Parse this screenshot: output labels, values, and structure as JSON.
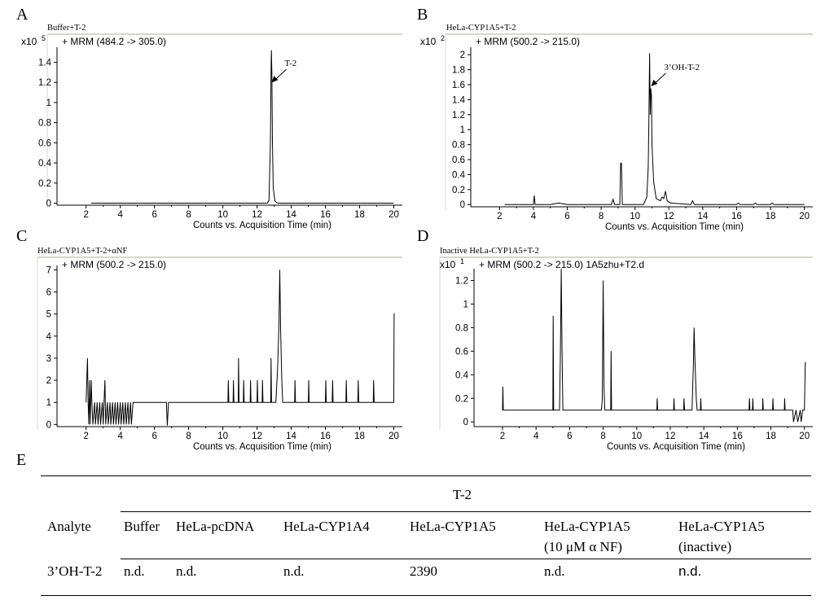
{
  "chart_data": [
    {
      "panel": "A",
      "type": "line",
      "title": "Buffer+T-2",
      "scale_label": "x10",
      "scale_exp": "5",
      "mrm_label": "+ MRM (484.2 -> 305.0)",
      "xlabel": "Counts vs. Acquisition Time (min)",
      "xlim": [
        0.3,
        20.5
      ],
      "ylim": [
        -0.02,
        1.55
      ],
      "xticks": [
        "2",
        "4",
        "6",
        "8",
        "10",
        "12",
        "14",
        "16",
        "18",
        "20"
      ],
      "yticks": [
        "0",
        "0.2",
        "0.4",
        "0.6",
        "0.8",
        "1",
        "1.2",
        "1.4"
      ],
      "annotation": {
        "text": "T-2",
        "x": 12.85,
        "y": 1.2
      },
      "series": [
        {
          "name": "MRM 484.2->305.0",
          "points": [
            [
              2.3,
              0
            ],
            [
              12.6,
              0
            ],
            [
              12.7,
              0.03
            ],
            [
              12.78,
              0.6
            ],
            [
              12.82,
              1.3
            ],
            [
              12.84,
              1.52
            ],
            [
              12.87,
              1.3
            ],
            [
              12.9,
              0.6
            ],
            [
              12.95,
              0.15
            ],
            [
              13.05,
              0.02
            ],
            [
              13.2,
              0
            ],
            [
              20,
              0
            ]
          ]
        }
      ]
    },
    {
      "panel": "B",
      "type": "line",
      "title": "HeLa-CYP1A5+T-2",
      "scale_label": "x10",
      "scale_exp": "2",
      "mrm_label": "+ MRM (500.2 -> 215.0)",
      "xlabel": "Counts vs. Acquisition Time (min)",
      "xlim": [
        0.3,
        20.5
      ],
      "ylim": [
        -0.03,
        2.1
      ],
      "xticks": [
        "2",
        "4",
        "6",
        "8",
        "10",
        "12",
        "14",
        "16",
        "18",
        "20"
      ],
      "yticks": [
        "0",
        "0.2",
        "0.4",
        "0.6",
        "0.8",
        "1",
        "1.2",
        "1.4",
        "1.6",
        "1.8",
        "2"
      ],
      "annotation": {
        "text": "3’OH-T-2",
        "x": 10.95,
        "y": 1.58
      },
      "series": [
        {
          "name": "MRM 500.2->215.0",
          "points": [
            [
              2.3,
              0
            ],
            [
              4.0,
              0
            ],
            [
              4.05,
              0.12
            ],
            [
              4.1,
              0
            ],
            [
              5.0,
              0
            ],
            [
              5.5,
              0.02
            ],
            [
              6.0,
              0
            ],
            [
              8.6,
              0
            ],
            [
              8.7,
              0.07
            ],
            [
              8.8,
              0
            ],
            [
              9.1,
              0
            ],
            [
              9.15,
              0.55
            ],
            [
              9.2,
              0.55
            ],
            [
              9.25,
              0
            ],
            [
              10.5,
              0
            ],
            [
              10.7,
              0.1
            ],
            [
              10.78,
              0.5
            ],
            [
              10.82,
              1.1
            ],
            [
              10.86,
              2.02
            ],
            [
              10.9,
              1.2
            ],
            [
              10.93,
              1.55
            ],
            [
              10.97,
              1.45
            ],
            [
              11.0,
              0.8
            ],
            [
              11.1,
              0.3
            ],
            [
              11.25,
              0.08
            ],
            [
              11.5,
              0.05
            ],
            [
              11.6,
              0.1
            ],
            [
              11.7,
              0.08
            ],
            [
              11.8,
              0.18
            ],
            [
              11.9,
              0.05
            ],
            [
              12.1,
              0.02
            ],
            [
              13.3,
              0
            ],
            [
              13.4,
              0.05
            ],
            [
              13.5,
              0
            ],
            [
              16.0,
              0
            ],
            [
              16.1,
              0.02
            ],
            [
              16.2,
              0
            ],
            [
              17.0,
              0
            ],
            [
              17.1,
              0.02
            ],
            [
              17.2,
              0
            ],
            [
              18.0,
              0
            ],
            [
              18.1,
              0.02
            ],
            [
              18.2,
              0
            ],
            [
              20,
              0
            ]
          ]
        }
      ]
    },
    {
      "panel": "C",
      "type": "line",
      "title": "HeLa-CYP1A5+T-2+αNF",
      "mrm_label": "+ MRM (500.2 -> 215.0)",
      "xlabel": "Counts vs. Acquisition Time (min)",
      "xlim": [
        0.3,
        20.5
      ],
      "ylim": [
        -0.1,
        7.2
      ],
      "xticks": [
        "2",
        "4",
        "6",
        "8",
        "10",
        "12",
        "14",
        "16",
        "18",
        "20"
      ],
      "yticks": [
        "0",
        "1",
        "2",
        "3",
        "4",
        "5",
        "6",
        "7"
      ],
      "series": [
        {
          "name": "MRM 500.2->215.0",
          "points": [
            [
              2.0,
              1
            ],
            [
              2.08,
              3
            ],
            [
              2.12,
              1
            ],
            [
              2.16,
              0
            ],
            [
              2.2,
              2
            ],
            [
              2.24,
              0
            ],
            [
              2.3,
              2
            ],
            [
              2.34,
              1
            ],
            [
              2.4,
              0
            ],
            [
              2.5,
              1
            ],
            [
              2.55,
              0
            ],
            [
              2.65,
              1
            ],
            [
              2.7,
              0
            ],
            [
              2.8,
              1
            ],
            [
              2.85,
              0
            ],
            [
              2.95,
              1
            ],
            [
              3.0,
              0
            ],
            [
              3.1,
              2
            ],
            [
              3.15,
              0
            ],
            [
              3.25,
              1
            ],
            [
              3.3,
              0
            ],
            [
              3.4,
              1
            ],
            [
              3.45,
              0
            ],
            [
              3.55,
              1
            ],
            [
              3.6,
              0
            ],
            [
              3.7,
              1
            ],
            [
              3.75,
              0
            ],
            [
              3.85,
              1
            ],
            [
              3.9,
              0
            ],
            [
              4.0,
              1
            ],
            [
              4.05,
              0
            ],
            [
              4.15,
              1
            ],
            [
              4.2,
              0
            ],
            [
              4.3,
              1
            ],
            [
              4.35,
              0
            ],
            [
              4.45,
              1
            ],
            [
              4.5,
              0
            ],
            [
              4.6,
              1
            ],
            [
              4.65,
              0
            ],
            [
              4.75,
              1
            ],
            [
              6.7,
              1
            ],
            [
              6.75,
              -0.05
            ],
            [
              6.82,
              1
            ],
            [
              10.3,
              1
            ],
            [
              10.32,
              2
            ],
            [
              10.35,
              1
            ],
            [
              10.6,
              1
            ],
            [
              10.62,
              2
            ],
            [
              10.65,
              1
            ],
            [
              10.9,
              1
            ],
            [
              10.92,
              3
            ],
            [
              10.95,
              1
            ],
            [
              11.2,
              1
            ],
            [
              11.22,
              2
            ],
            [
              11.25,
              1
            ],
            [
              11.6,
              1
            ],
            [
              11.62,
              2
            ],
            [
              11.65,
              1
            ],
            [
              12.0,
              1
            ],
            [
              12.02,
              2
            ],
            [
              12.05,
              1
            ],
            [
              12.3,
              1
            ],
            [
              12.32,
              2
            ],
            [
              12.35,
              1
            ],
            [
              12.8,
              1
            ],
            [
              12.82,
              3
            ],
            [
              12.85,
              1
            ],
            [
              13.1,
              1
            ],
            [
              13.2,
              2.5
            ],
            [
              13.28,
              4.5
            ],
            [
              13.33,
              7.0
            ],
            [
              13.38,
              4.2
            ],
            [
              13.45,
              2.0
            ],
            [
              13.5,
              1
            ],
            [
              14.2,
              1
            ],
            [
              14.22,
              2
            ],
            [
              14.25,
              1
            ],
            [
              15.0,
              1
            ],
            [
              15.02,
              2
            ],
            [
              15.05,
              1
            ],
            [
              16.0,
              1
            ],
            [
              16.02,
              2
            ],
            [
              16.05,
              1
            ],
            [
              16.4,
              1
            ],
            [
              16.42,
              2
            ],
            [
              16.45,
              1
            ],
            [
              17.2,
              1
            ],
            [
              17.22,
              2
            ],
            [
              17.25,
              1
            ],
            [
              17.9,
              1
            ],
            [
              17.92,
              2
            ],
            [
              17.95,
              1
            ],
            [
              18.8,
              1
            ],
            [
              18.82,
              2
            ],
            [
              18.85,
              1
            ],
            [
              20.0,
              1
            ],
            [
              20.02,
              5
            ],
            [
              20.05,
              5
            ]
          ]
        }
      ]
    },
    {
      "panel": "D",
      "type": "line",
      "title": "Inactive HeLa-CYP1A5+T-2",
      "scale_label": "x10",
      "scale_exp": "1",
      "mrm_label": "+ MRM (500.2 -> 215.0) 1A5zhu+T2.d",
      "xlabel": "Counts vs. Acquisition Time (min)",
      "xlim": [
        0.3,
        20.5
      ],
      "ylim": [
        -0.04,
        1.3
      ],
      "xticks": [
        "2",
        "4",
        "6",
        "8",
        "10",
        "12",
        "14",
        "16",
        "18",
        "20"
      ],
      "yticks": [
        "0",
        "0.2",
        "0.4",
        "0.6",
        "0.8",
        "1",
        "1.2"
      ],
      "series": [
        {
          "name": "MRM 500.2->215.0",
          "points": [
            [
              2.0,
              0.1
            ],
            [
              2.02,
              0.3
            ],
            [
              2.05,
              0.1
            ],
            [
              5.0,
              0.1
            ],
            [
              5.02,
              0.9
            ],
            [
              5.05,
              0.1
            ],
            [
              5.4,
              0.1
            ],
            [
              5.45,
              0.6
            ],
            [
              5.5,
              1.3
            ],
            [
              5.55,
              0.6
            ],
            [
              5.6,
              0.1
            ],
            [
              7.9,
              0.1
            ],
            [
              7.95,
              0.2
            ],
            [
              8.0,
              1.2
            ],
            [
              8.05,
              0.3
            ],
            [
              8.1,
              0.1
            ],
            [
              8.45,
              0.1
            ],
            [
              8.47,
              0.6
            ],
            [
              8.5,
              0.1
            ],
            [
              11.2,
              0.1
            ],
            [
              11.22,
              0.2
            ],
            [
              11.25,
              0.1
            ],
            [
              12.2,
              0.1
            ],
            [
              12.22,
              0.2
            ],
            [
              12.25,
              0.1
            ],
            [
              12.8,
              0.1
            ],
            [
              12.82,
              0.2
            ],
            [
              12.85,
              0.1
            ],
            [
              13.3,
              0.1
            ],
            [
              13.38,
              0.5
            ],
            [
              13.42,
              0.8
            ],
            [
              13.48,
              0.5
            ],
            [
              13.55,
              0.2
            ],
            [
              13.6,
              0.1
            ],
            [
              13.8,
              0.1
            ],
            [
              13.82,
              0.2
            ],
            [
              13.85,
              0.1
            ],
            [
              16.7,
              0.1
            ],
            [
              16.72,
              0.2
            ],
            [
              16.75,
              0.1
            ],
            [
              16.9,
              0.1
            ],
            [
              16.92,
              0.2
            ],
            [
              16.95,
              0.1
            ],
            [
              17.5,
              0.1
            ],
            [
              17.52,
              0.2
            ],
            [
              17.55,
              0.1
            ],
            [
              18.1,
              0.1
            ],
            [
              18.12,
              0.2
            ],
            [
              18.15,
              0.1
            ],
            [
              18.8,
              0.1
            ],
            [
              18.82,
              0.2
            ],
            [
              18.85,
              0.1
            ],
            [
              19.3,
              0.1
            ],
            [
              19.35,
              0.0
            ],
            [
              19.5,
              0.1
            ],
            [
              19.6,
              0.0
            ],
            [
              19.75,
              0.1
            ],
            [
              19.8,
              0.0
            ],
            [
              19.9,
              0.1
            ],
            [
              20.0,
              0.1
            ],
            [
              20.05,
              0.5
            ],
            [
              20.1,
              0.5
            ]
          ]
        }
      ]
    },
    {
      "panel": "E",
      "type": "table",
      "group_header": "T-2",
      "columns": [
        "Analyte",
        "Buffer",
        "HeLa-pcDNA",
        "HeLa-CYP1A4",
        "HeLa-CYP1A5",
        "HeLa-CYP1A5",
        "HeLa-CYP1A5"
      ],
      "columns_sub": [
        "",
        "",
        "",
        "",
        "",
        "(10 μM α NF)",
        "(inactive)"
      ],
      "rows": [
        [
          "3’OH-T-2",
          "n.d.",
          "n.d.",
          "n.d.",
          "2390",
          "n.d.",
          "n.d."
        ]
      ]
    }
  ],
  "panel_labels": [
    "A",
    "B",
    "C",
    "D",
    "E"
  ]
}
